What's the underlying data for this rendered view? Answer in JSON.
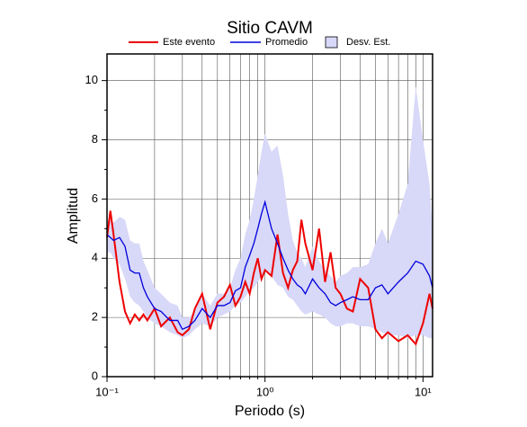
{
  "chart_data": {
    "type": "line",
    "title": "Sitio CAVM",
    "x_label": "Periodo (s)",
    "y_label": "Amplitud",
    "x_scale": "log",
    "grid": true,
    "legend": "top",
    "xlim": [
      0.1,
      11.5
    ],
    "ylim": [
      0,
      10.9
    ],
    "xticks": [
      {
        "value": 0.1,
        "label": "10⁻¹"
      },
      {
        "value": 1,
        "label": "10⁰"
      },
      {
        "value": 10,
        "label": "10¹"
      }
    ],
    "xminorticks": [
      0.2,
      0.3,
      0.4,
      0.5,
      0.6,
      0.7,
      0.8,
      0.9,
      2,
      3,
      4,
      5,
      6,
      7,
      8,
      9
    ],
    "yticks": [
      0,
      2,
      4,
      6,
      8,
      10
    ],
    "yminorticks": [
      1,
      3,
      5,
      7,
      9
    ],
    "x": [
      0.1,
      0.105,
      0.11,
      0.12,
      0.13,
      0.14,
      0.15,
      0.16,
      0.17,
      0.18,
      0.2,
      0.22,
      0.25,
      0.28,
      0.3,
      0.33,
      0.36,
      0.4,
      0.45,
      0.5,
      0.55,
      0.6,
      0.65,
      0.7,
      0.75,
      0.8,
      0.85,
      0.9,
      0.95,
      1.0,
      1.1,
      1.2,
      1.3,
      1.4,
      1.5,
      1.6,
      1.7,
      1.8,
      2.0,
      2.2,
      2.4,
      2.6,
      2.8,
      3.0,
      3.3,
      3.6,
      4.0,
      4.5,
      5,
      5.5,
      6,
      7,
      8,
      9,
      10,
      11,
      11.5
    ],
    "band": {
      "name": "Desv. Est.",
      "color": "#d8d8f8",
      "lower": [
        4.2,
        4.2,
        4.0,
        3.8,
        3.3,
        2.7,
        2.5,
        2.4,
        2.2,
        2.0,
        1.8,
        1.7,
        1.5,
        1.4,
        1.3,
        1.4,
        1.6,
        1.8,
        1.7,
        2.0,
        2.1,
        2.2,
        2.4,
        2.5,
        2.7,
        2.9,
        3.0,
        3.2,
        3.4,
        3.6,
        3.4,
        3.1,
        3.0,
        2.7,
        2.6,
        2.4,
        2.2,
        2.1,
        2.2,
        2.1,
        2.0,
        1.8,
        1.7,
        1.7,
        1.8,
        1.8,
        1.7,
        1.7,
        1.6,
        1.5,
        1.4,
        1.4,
        1.3,
        1.4,
        1.4,
        1.3,
        1.3
      ],
      "upper": [
        5.3,
        5.3,
        5.2,
        5.4,
        5.3,
        4.6,
        4.5,
        4.5,
        3.9,
        3.6,
        3.0,
        2.8,
        2.5,
        2.4,
        2.0,
        2.0,
        2.2,
        2.8,
        2.4,
        2.8,
        2.8,
        3.0,
        3.6,
        4.0,
        4.8,
        5.3,
        6.0,
        6.8,
        7.6,
        8.2,
        7.6,
        7.8,
        6.8,
        5.5,
        4.6,
        4.2,
        4.0,
        3.7,
        4.4,
        3.9,
        3.6,
        3.4,
        3.2,
        3.4,
        3.5,
        3.7,
        3.7,
        3.8,
        4.5,
        5.0,
        4.5,
        5.5,
        6.5,
        9.8,
        8.0,
        6.5,
        5.0
      ]
    },
    "series": [
      {
        "name": "Este evento",
        "color": "#ee0000",
        "values": [
          4.7,
          5.6,
          4.8,
          3.2,
          2.2,
          1.8,
          2.1,
          1.9,
          2.1,
          1.9,
          2.3,
          1.7,
          2.0,
          1.5,
          1.4,
          1.6,
          2.3,
          2.8,
          1.6,
          2.5,
          2.7,
          3.1,
          2.4,
          2.7,
          3.2,
          2.8,
          3.5,
          4.0,
          3.3,
          3.6,
          3.4,
          4.8,
          3.5,
          3.0,
          3.6,
          3.9,
          5.3,
          4.5,
          3.6,
          5.0,
          3.2,
          4.2,
          3.0,
          2.8,
          2.3,
          2.2,
          3.3,
          3.0,
          1.6,
          1.3,
          1.5,
          1.2,
          1.4,
          1.1,
          1.8,
          2.8,
          2.3
        ]
      },
      {
        "name": "Promedio",
        "color": "#0000dd",
        "values": [
          4.8,
          4.7,
          4.6,
          4.7,
          4.4,
          3.6,
          3.5,
          3.5,
          3.0,
          2.7,
          2.3,
          2.2,
          1.9,
          1.9,
          1.6,
          1.7,
          1.9,
          2.3,
          2.0,
          2.4,
          2.4,
          2.5,
          2.9,
          3.0,
          3.7,
          4.1,
          4.5,
          5.0,
          5.5,
          5.9,
          5.0,
          4.5,
          4.0,
          3.6,
          3.3,
          3.1,
          3.0,
          2.8,
          3.3,
          3.0,
          2.8,
          2.5,
          2.4,
          2.5,
          2.6,
          2.7,
          2.6,
          2.6,
          3.0,
          3.1,
          2.8,
          3.2,
          3.5,
          3.9,
          3.8,
          3.4,
          3.0
        ]
      }
    ]
  }
}
